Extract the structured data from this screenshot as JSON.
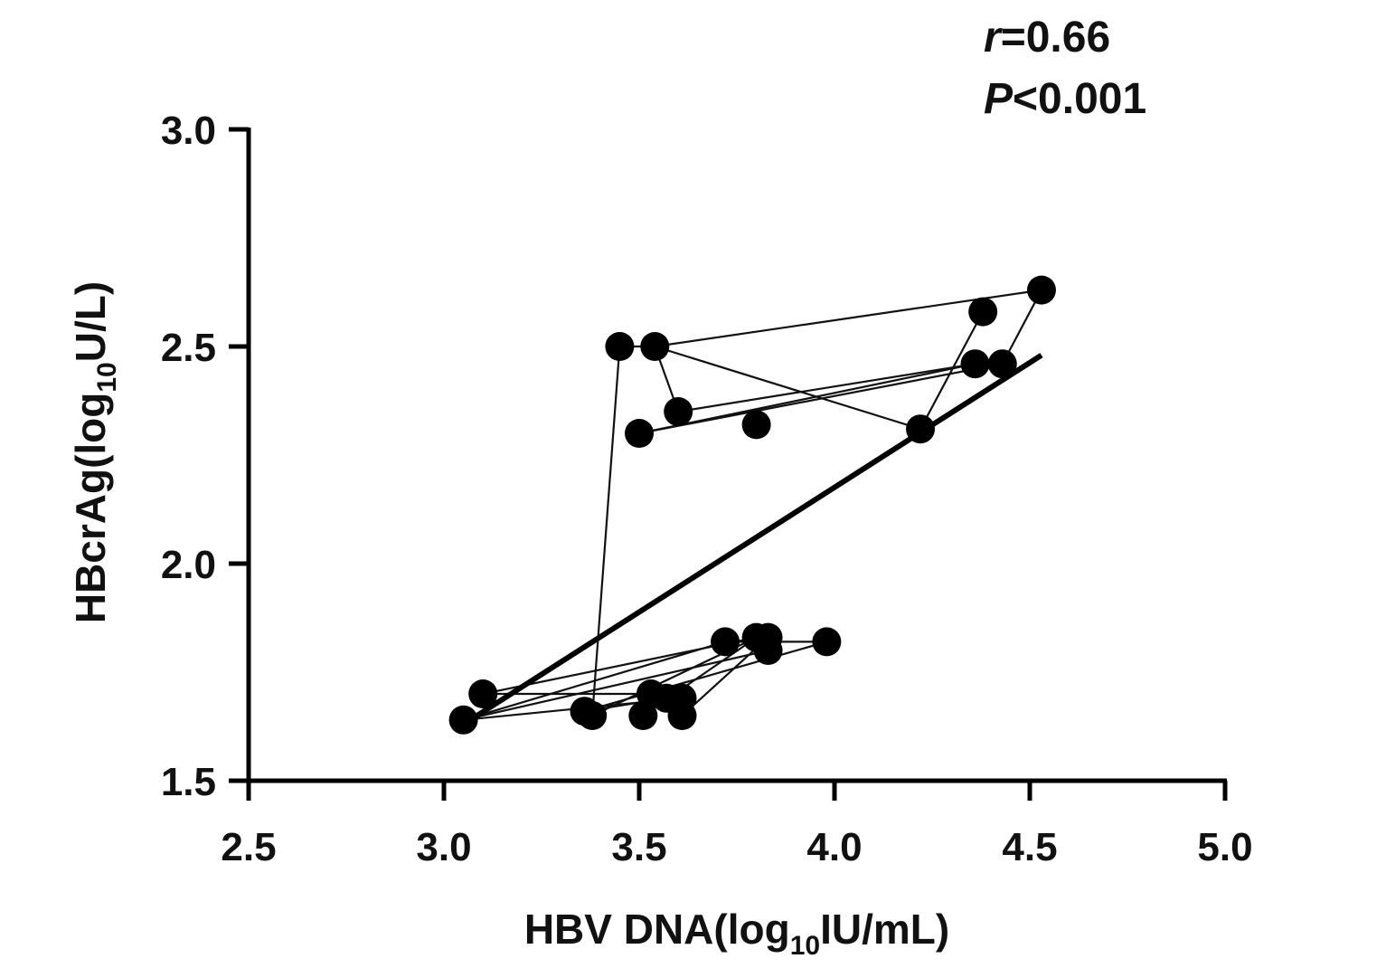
{
  "chart_data": {
    "type": "scatter",
    "xlabel_parts": [
      "HBV DNA(log",
      "10",
      "IU/mL)"
    ],
    "ylabel_parts": [
      "HBcrAg(log",
      "10",
      "U/L)"
    ],
    "xlim": [
      2.5,
      5.0
    ],
    "ylim": [
      1.5,
      3.0
    ],
    "xticks": [
      "2.5",
      "3.0",
      "3.5",
      "4.0",
      "4.5",
      "5.0"
    ],
    "yticks": [
      "1.5",
      "2.0",
      "2.5",
      "3.0"
    ],
    "grid": false,
    "annotation": {
      "r_symbol": "r",
      "r_text": "=0.66",
      "p_symbol": "P",
      "p_text": "<0.001"
    },
    "points": [
      {
        "x": 3.05,
        "y": 1.64
      },
      {
        "x": 3.1,
        "y": 1.7
      },
      {
        "x": 3.36,
        "y": 1.66
      },
      {
        "x": 3.38,
        "y": 1.65
      },
      {
        "x": 3.51,
        "y": 1.65
      },
      {
        "x": 3.53,
        "y": 1.7
      },
      {
        "x": 3.57,
        "y": 1.69
      },
      {
        "x": 3.61,
        "y": 1.69
      },
      {
        "x": 3.61,
        "y": 1.65
      },
      {
        "x": 3.72,
        "y": 1.82
      },
      {
        "x": 3.8,
        "y": 1.83
      },
      {
        "x": 3.83,
        "y": 1.83
      },
      {
        "x": 3.83,
        "y": 1.8
      },
      {
        "x": 3.98,
        "y": 1.82
      },
      {
        "x": 3.45,
        "y": 2.5
      },
      {
        "x": 3.54,
        "y": 2.5
      },
      {
        "x": 3.6,
        "y": 2.35
      },
      {
        "x": 3.5,
        "y": 2.3
      },
      {
        "x": 3.8,
        "y": 2.32
      },
      {
        "x": 4.22,
        "y": 2.31
      },
      {
        "x": 4.36,
        "y": 2.46
      },
      {
        "x": 4.38,
        "y": 2.58
      },
      {
        "x": 4.43,
        "y": 2.46
      },
      {
        "x": 4.53,
        "y": 2.63
      }
    ],
    "connecting_lines": [
      [
        [
          3.05,
          1.64
        ],
        [
          3.72,
          1.82
        ]
      ],
      [
        [
          3.05,
          1.64
        ],
        [
          3.83,
          1.8
        ]
      ],
      [
        [
          3.05,
          1.64
        ],
        [
          3.61,
          1.69
        ]
      ],
      [
        [
          3.1,
          1.7
        ],
        [
          3.8,
          1.83
        ]
      ],
      [
        [
          3.1,
          1.7
        ],
        [
          3.53,
          1.7
        ]
      ],
      [
        [
          3.36,
          1.66
        ],
        [
          3.98,
          1.82
        ]
      ],
      [
        [
          3.36,
          1.66
        ],
        [
          3.57,
          1.69
        ]
      ],
      [
        [
          3.38,
          1.65
        ],
        [
          3.8,
          1.83
        ]
      ],
      [
        [
          3.51,
          1.65
        ],
        [
          3.8,
          1.83
        ]
      ],
      [
        [
          3.61,
          1.65
        ],
        [
          3.83,
          1.83
        ]
      ],
      [
        [
          3.72,
          1.82
        ],
        [
          3.98,
          1.82
        ]
      ],
      [
        [
          3.38,
          1.65
        ],
        [
          3.45,
          2.5
        ]
      ],
      [
        [
          3.45,
          2.5
        ],
        [
          3.54,
          2.5
        ]
      ],
      [
        [
          3.54,
          2.5
        ],
        [
          4.53,
          2.63
        ]
      ],
      [
        [
          3.54,
          2.5
        ],
        [
          3.6,
          2.35
        ]
      ],
      [
        [
          3.54,
          2.5
        ],
        [
          4.22,
          2.31
        ]
      ],
      [
        [
          3.5,
          2.3
        ],
        [
          4.36,
          2.46
        ]
      ],
      [
        [
          3.5,
          2.3
        ],
        [
          4.43,
          2.46
        ]
      ],
      [
        [
          3.6,
          2.35
        ],
        [
          4.36,
          2.46
        ]
      ],
      [
        [
          4.22,
          2.31
        ],
        [
          4.38,
          2.58
        ]
      ],
      [
        [
          4.53,
          2.63
        ],
        [
          4.43,
          2.46
        ]
      ]
    ],
    "fit_line": {
      "x": [
        3.05,
        4.53
      ],
      "y": [
        1.63,
        2.48
      ]
    }
  }
}
